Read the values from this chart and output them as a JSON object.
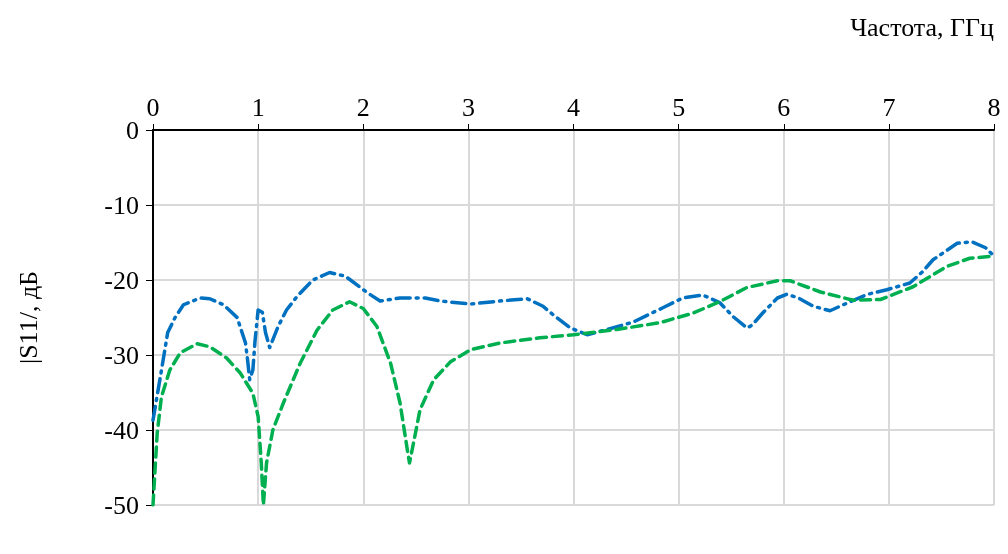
{
  "chart_data": {
    "type": "line",
    "xlabel": "Частота, ГГц",
    "ylabel": "|S11/, дБ",
    "xlim": [
      0,
      8
    ],
    "xticks": [
      0,
      1,
      2,
      3,
      4,
      5,
      6,
      7,
      8
    ],
    "ylim": [
      -50,
      0
    ],
    "yticks": [
      -50,
      -40,
      -30,
      -20,
      -10,
      0
    ],
    "grid": true,
    "marker": "none",
    "series": [
      {
        "color": "#0070c0",
        "line_style": "dashdot",
        "x": [
          0,
          0.07,
          0.14,
          0.21,
          0.29,
          0.45,
          0.54,
          0.67,
          0.8,
          0.88,
          0.9,
          0.92,
          0.95,
          0.97,
          1.0,
          1.04,
          1.07,
          1.11,
          1.19,
          1.27,
          1.37,
          1.52,
          1.68,
          1.83,
          2.04,
          2.16,
          2.35,
          2.59,
          2.73,
          3.02,
          3.3,
          3.56,
          3.71,
          3.82,
          3.97,
          4.13,
          4.32,
          4.57,
          4.85,
          5.04,
          5.23,
          5.39,
          5.52,
          5.65,
          5.7,
          5.8,
          5.94,
          6.03,
          6.14,
          6.28,
          6.44,
          6.63,
          6.8,
          6.98,
          7.2,
          7.32,
          7.42,
          7.65,
          7.79,
          7.92,
          8.0
        ],
        "values": [
          -38.7,
          -32.9,
          -27,
          -25,
          -23.3,
          -22.4,
          -22.5,
          -23.3,
          -25,
          -28.4,
          -30.7,
          -33.3,
          -32,
          -28.2,
          -24,
          -24.3,
          -27,
          -29,
          -26.2,
          -24,
          -22.2,
          -20,
          -19,
          -19.5,
          -21.7,
          -22.8,
          -22.4,
          -22.4,
          -22.8,
          -23.2,
          -22.8,
          -22.5,
          -23.5,
          -24.8,
          -26.4,
          -27.3,
          -26.6,
          -25.6,
          -23.7,
          -22.4,
          -22,
          -23,
          -24.9,
          -26.4,
          -26,
          -24.4,
          -22.4,
          -21.9,
          -22.4,
          -23.5,
          -24.1,
          -22.9,
          -21.9,
          -21.3,
          -20.4,
          -18.9,
          -17.3,
          -15.1,
          -14.9,
          -15.7,
          -16.8
        ]
      },
      {
        "color": "#00b050",
        "line_style": "dashed",
        "x": [
          0,
          0.04,
          0.08,
          0.16,
          0.26,
          0.42,
          0.54,
          0.7,
          0.83,
          0.95,
          1.0,
          1.03,
          1.05,
          1.08,
          1.14,
          1.24,
          1.4,
          1.56,
          1.71,
          1.87,
          2.0,
          2.13,
          2.26,
          2.35,
          2.42,
          2.44,
          2.49,
          2.54,
          2.67,
          2.83,
          3.02,
          3.3,
          3.68,
          4.0,
          4.41,
          4.82,
          5.14,
          5.39,
          5.65,
          5.94,
          6.06,
          6.35,
          6.66,
          6.92,
          7.23,
          7.55,
          7.77,
          8.0
        ],
        "values": [
          -50,
          -40.4,
          -35.6,
          -32,
          -29.7,
          -28.5,
          -28.9,
          -30.4,
          -32.4,
          -35.1,
          -38.2,
          -44.4,
          -50,
          -44.4,
          -40,
          -36.4,
          -31.1,
          -26.7,
          -24,
          -22.9,
          -23.8,
          -26.2,
          -31.1,
          -36.4,
          -42.7,
          -44.4,
          -40.9,
          -37.3,
          -33.3,
          -30.9,
          -29.3,
          -28.4,
          -27.7,
          -27.3,
          -26.6,
          -25.7,
          -24.4,
          -22.9,
          -21,
          -20.1,
          -20.1,
          -21.6,
          -22.7,
          -22.6,
          -20.9,
          -18.2,
          -17.1,
          -16.8
        ]
      }
    ]
  }
}
